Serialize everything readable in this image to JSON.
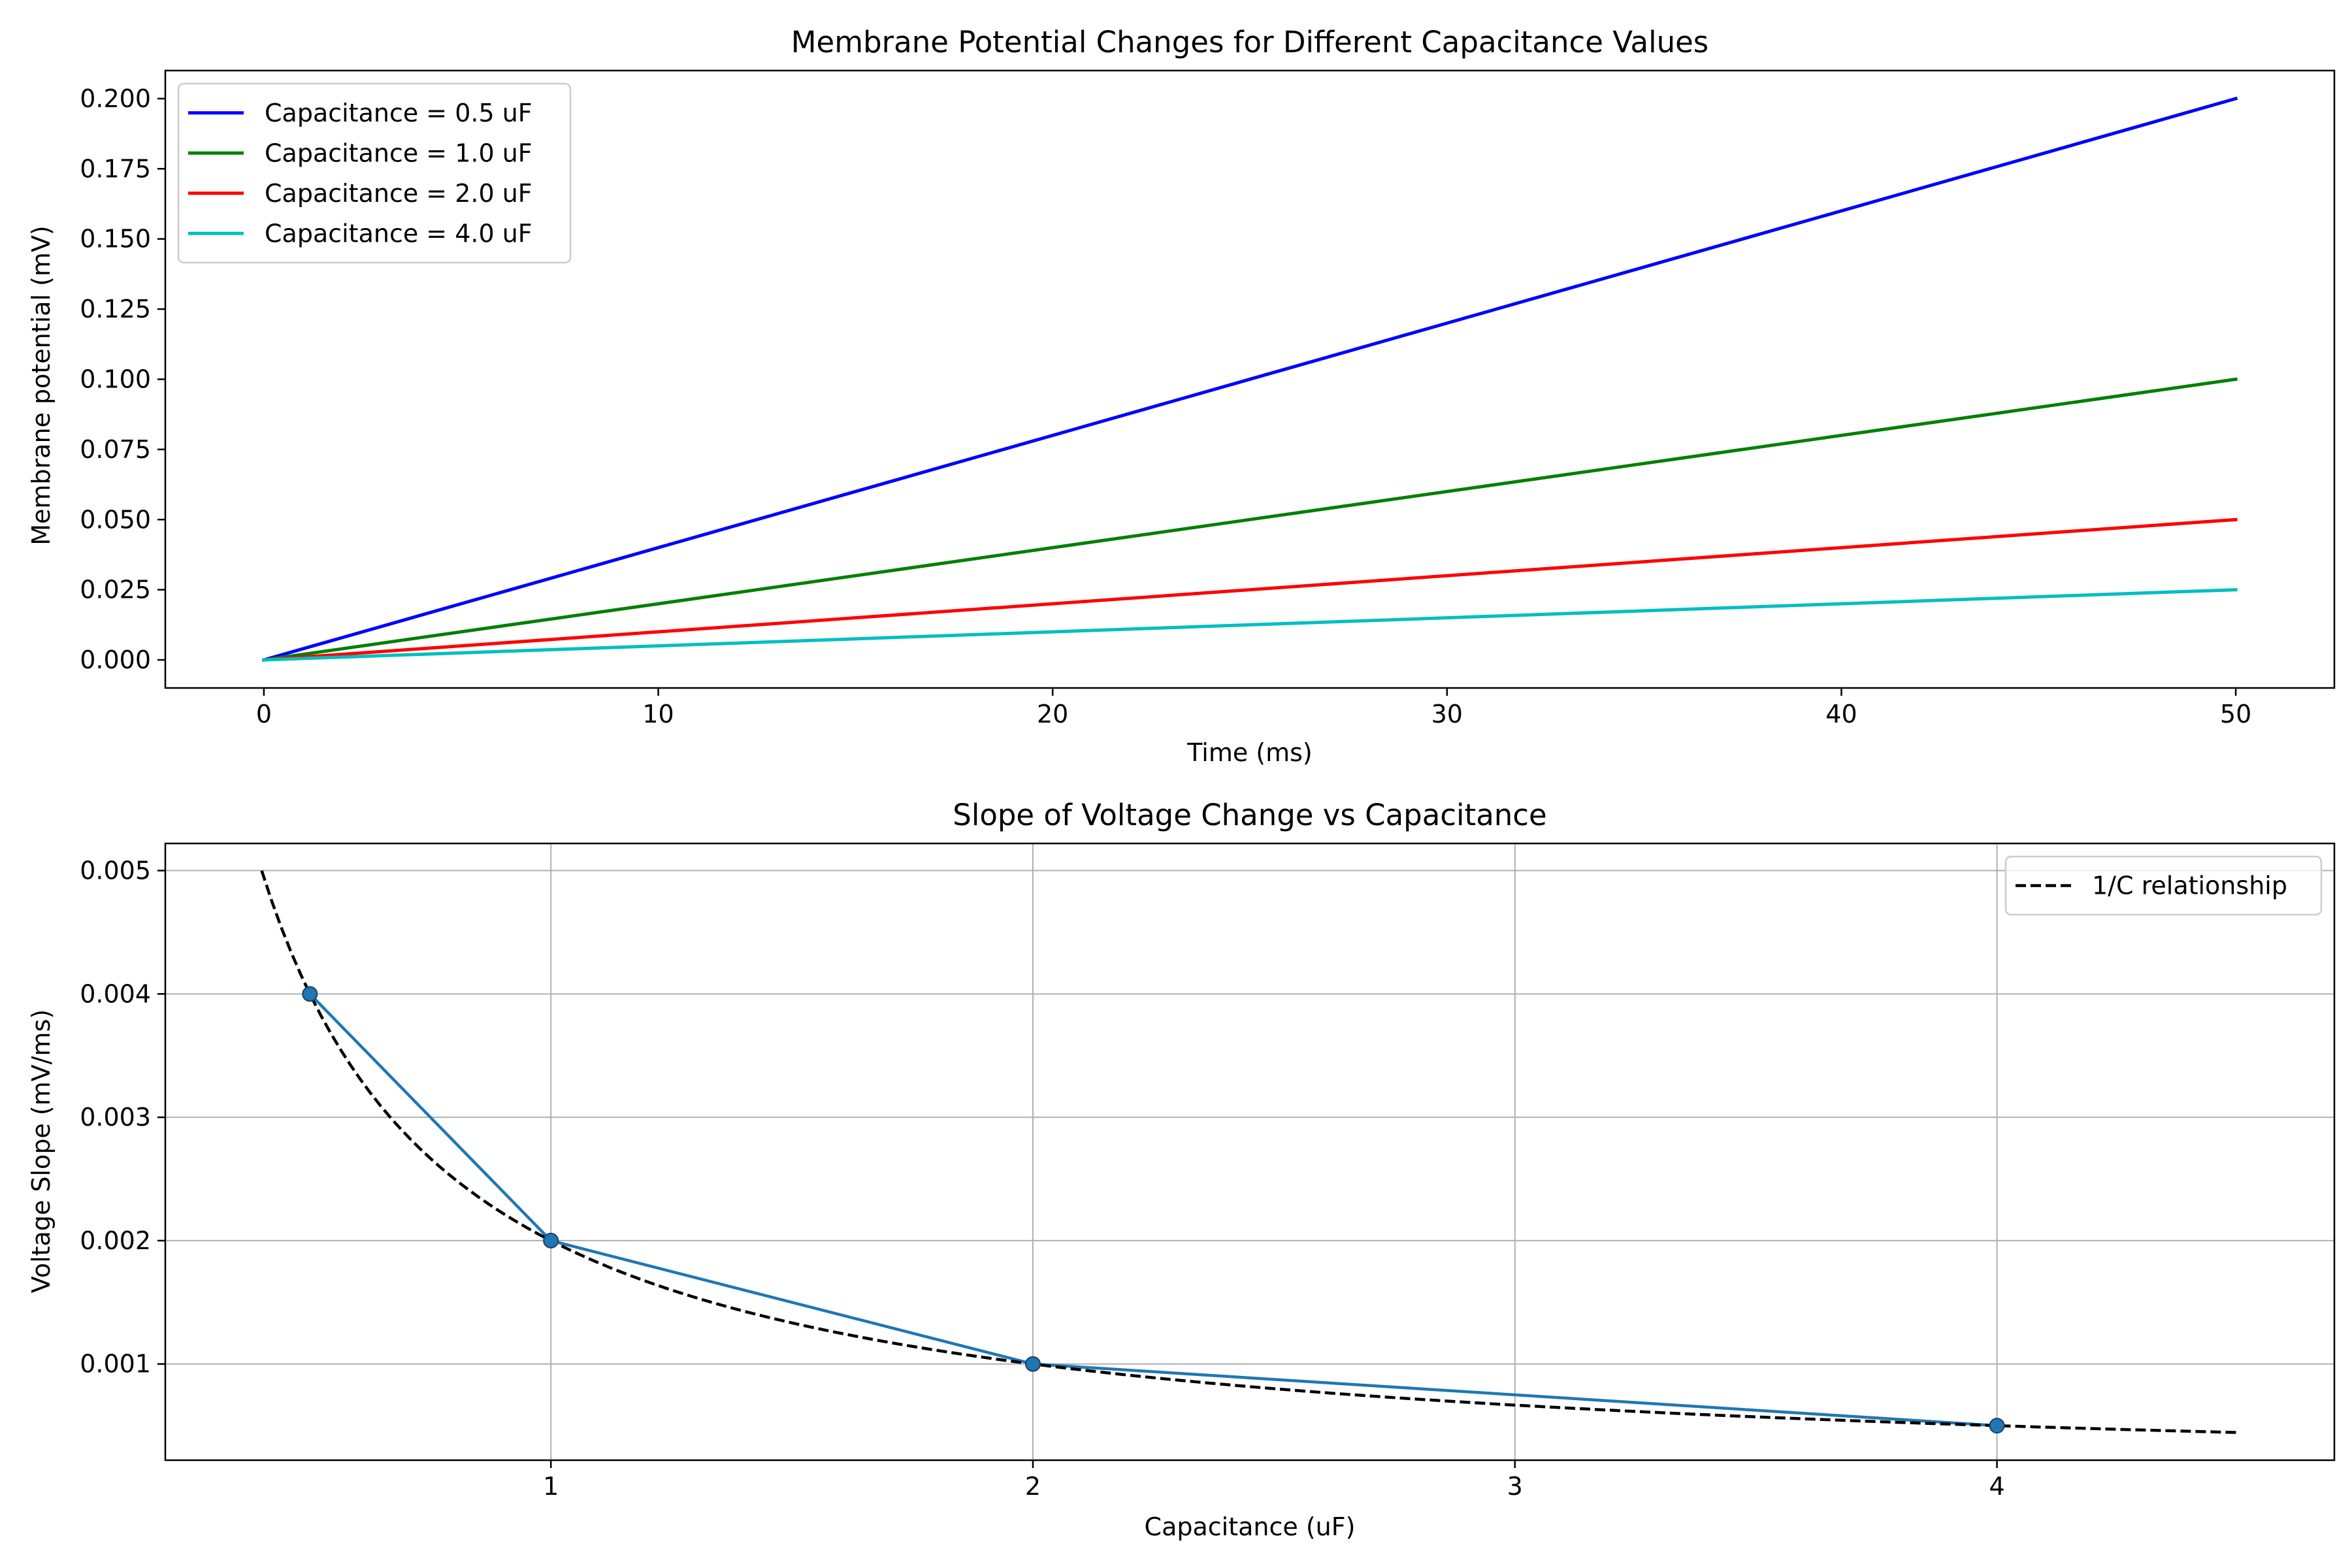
{
  "chart_data": [
    {
      "type": "line",
      "title": "Membrane Potential Changes for Different Capacitance Values",
      "xlabel": "Time (ms)",
      "ylabel": "Membrane potential (mV)",
      "xlim": [
        -2.5,
        52.5
      ],
      "ylim": [
        -0.01,
        0.21
      ],
      "xticks": [
        0,
        10,
        20,
        30,
        40,
        50
      ],
      "yticks": [
        0.0,
        0.025,
        0.05,
        0.075,
        0.1,
        0.125,
        0.15,
        0.175,
        0.2
      ],
      "ytick_labels": [
        "0.000",
        "0.025",
        "0.050",
        "0.075",
        "0.100",
        "0.125",
        "0.150",
        "0.175",
        "0.200"
      ],
      "grid": false,
      "legend_position": "top-left",
      "x": [
        0,
        50
      ],
      "series": [
        {
          "name": "Capacitance = 0.5 uF",
          "values": [
            0,
            0.2
          ],
          "color": "#0000ff"
        },
        {
          "name": "Capacitance = 1.0 uF",
          "values": [
            0,
            0.1
          ],
          "color": "#008000"
        },
        {
          "name": "Capacitance = 2.0 uF",
          "values": [
            0,
            0.05
          ],
          "color": "#ff0000"
        },
        {
          "name": "Capacitance = 4.0 uF",
          "values": [
            0,
            0.025
          ],
          "color": "#00bfbf"
        }
      ]
    },
    {
      "type": "line",
      "title": "Slope of Voltage Change vs Capacitance",
      "xlabel": "Capacitance (uF)",
      "ylabel": "Voltage Slope (mV/ms)",
      "xlim": [
        0.2,
        4.7
      ],
      "ylim": [
        0.00022,
        0.00522
      ],
      "xticks": [
        1,
        2,
        3,
        4
      ],
      "yticks": [
        0.001,
        0.002,
        0.003,
        0.004,
        0.005
      ],
      "ytick_labels": [
        "0.001",
        "0.002",
        "0.003",
        "0.004",
        "0.005"
      ],
      "grid": true,
      "legend_position": "top-right",
      "series": [
        {
          "name": "",
          "style": "solid-with-markers",
          "color": "#1f77b4",
          "x": [
            0.5,
            1,
            2,
            4
          ],
          "values": [
            0.004,
            0.002,
            0.001,
            0.0005
          ]
        },
        {
          "name": "1/C relationship",
          "style": "dashed",
          "color": "#000000",
          "function": "0.002 / C",
          "x_range": [
            0.4,
            4.5
          ]
        }
      ]
    }
  ]
}
